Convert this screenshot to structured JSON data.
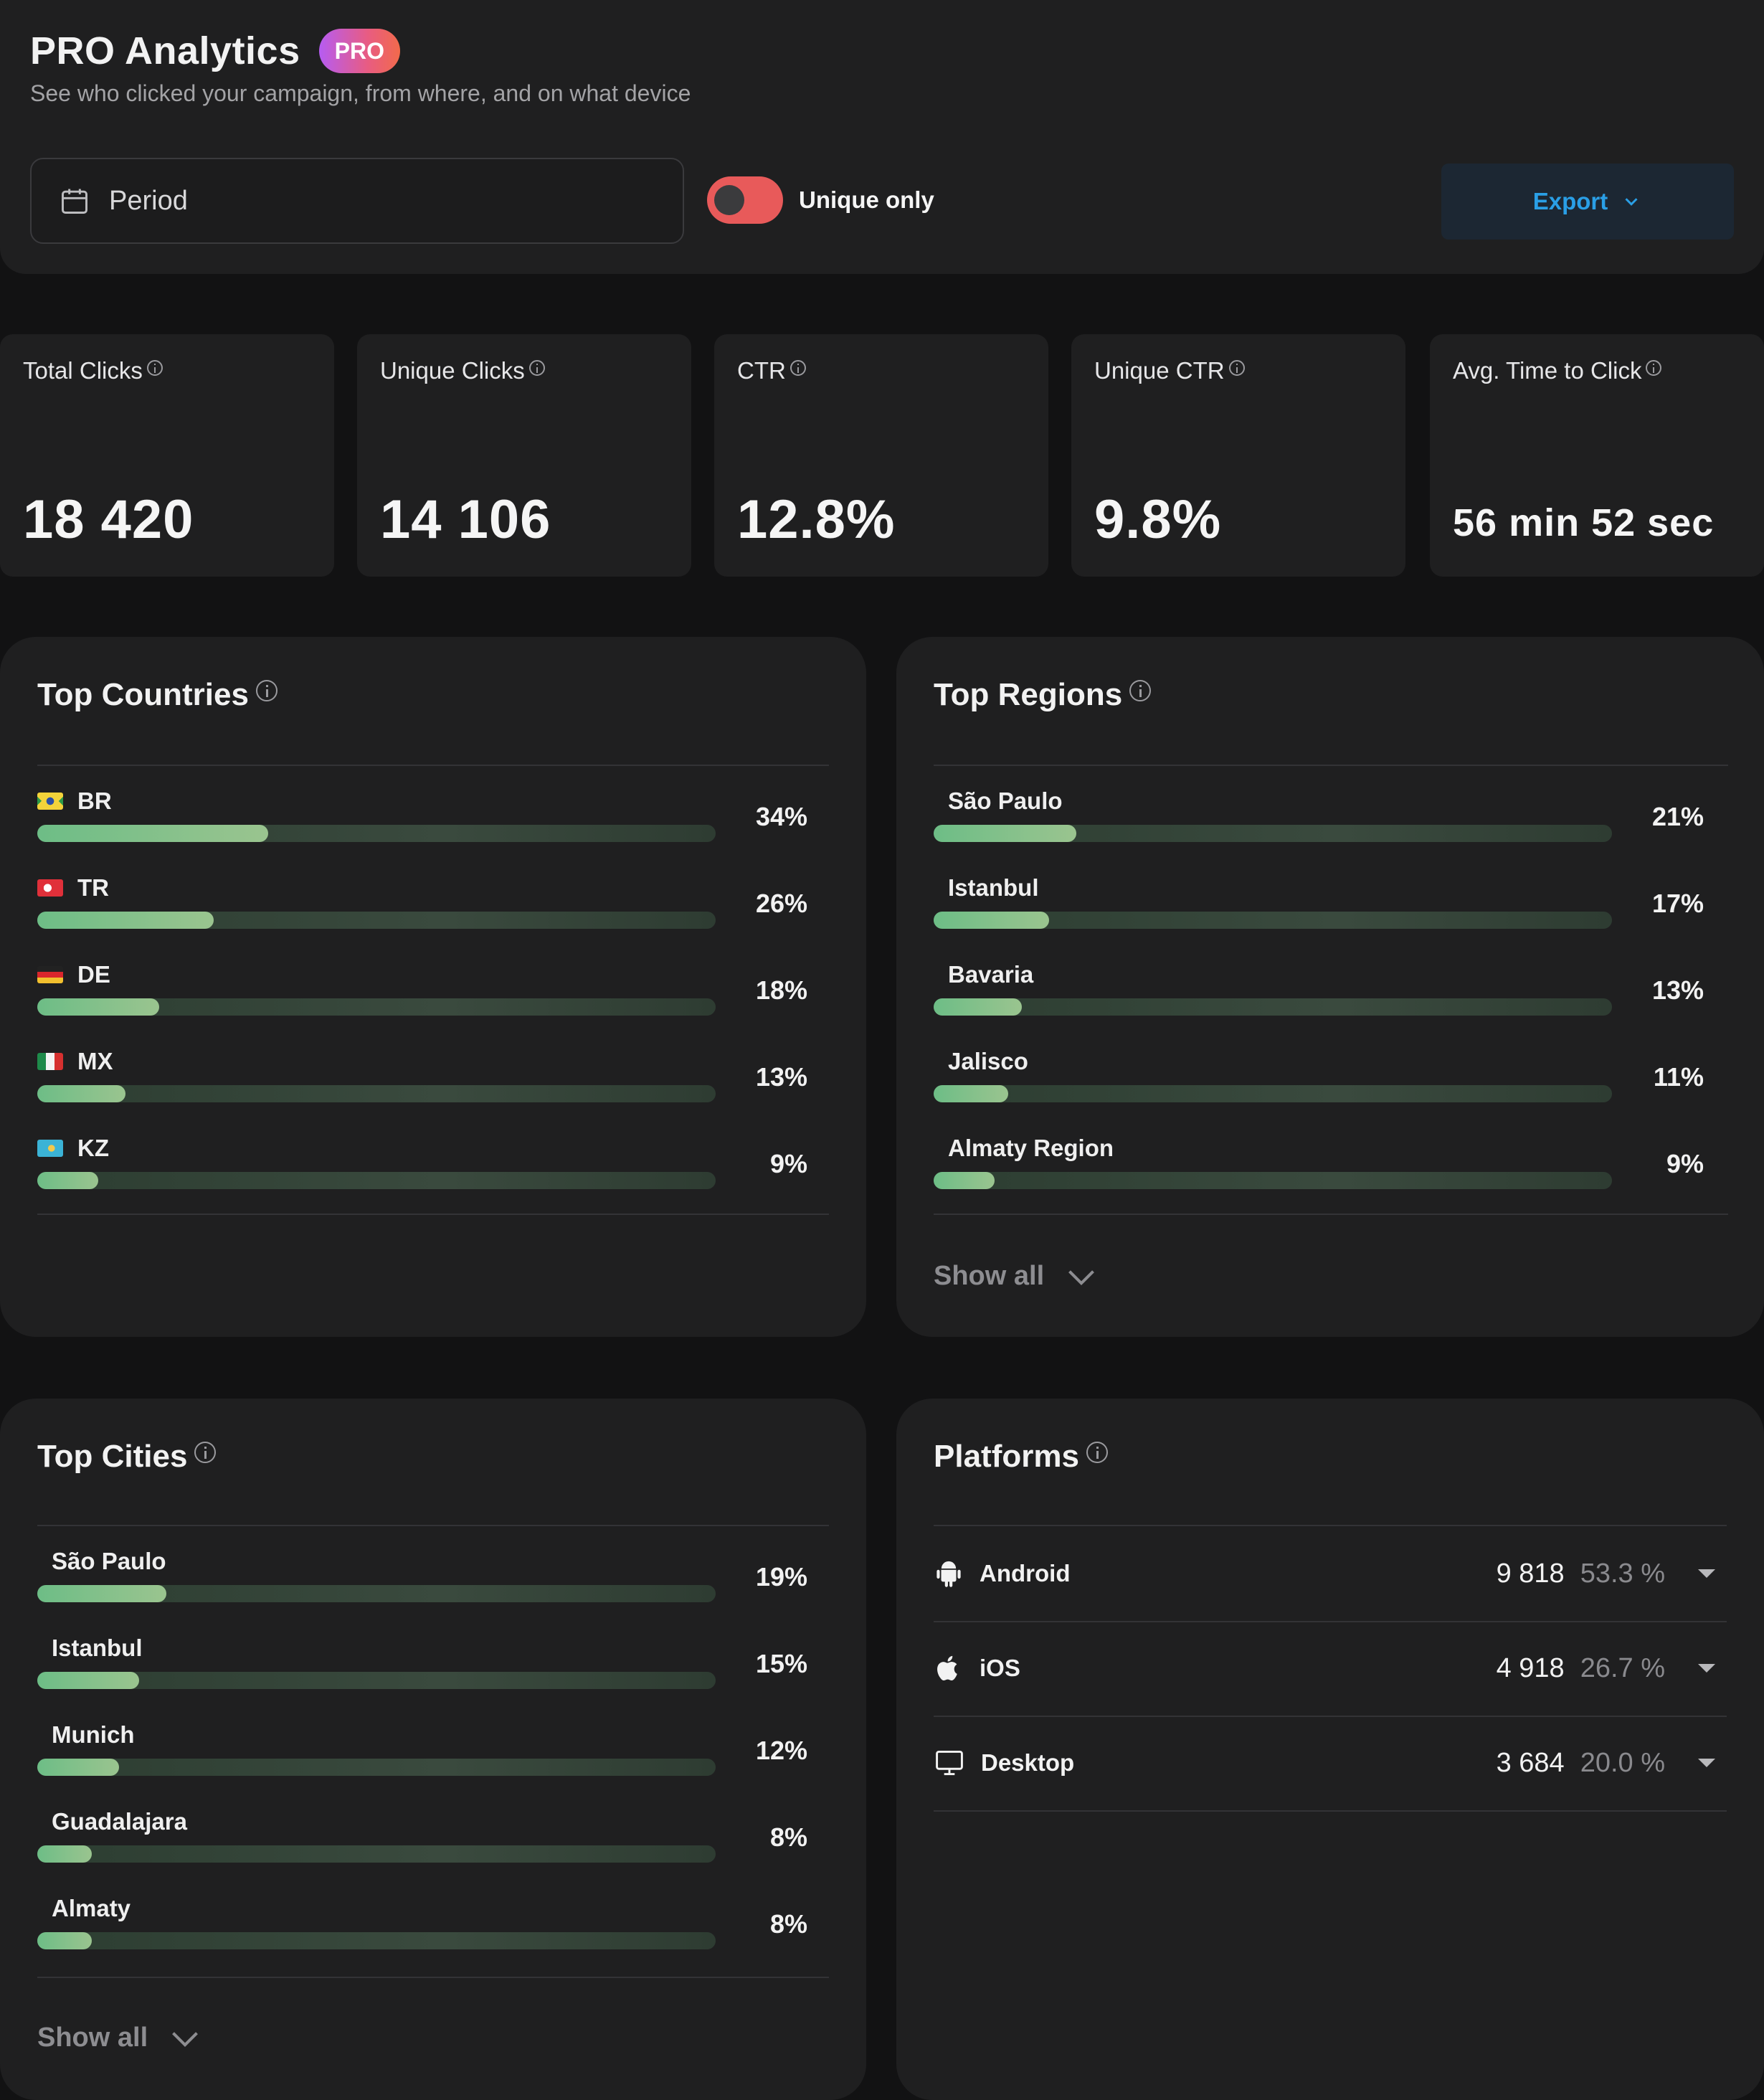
{
  "header": {
    "title": "PRO Analytics",
    "badge": "PRO",
    "subtitle": "See who clicked your campaign, from where, and on what device",
    "period_placeholder": "Period",
    "toggle_label": "Unique only",
    "toggle_on": true,
    "export_label": "Export"
  },
  "kpis": [
    {
      "label": "Total Clicks",
      "value": "18 420"
    },
    {
      "label": "Unique Clicks",
      "value": "14 106"
    },
    {
      "label": "CTR",
      "value": "12.8%"
    },
    {
      "label": "Unique CTR",
      "value": "9.8%"
    },
    {
      "label": "Avg. Time to Click",
      "value": "56 min 52 sec"
    }
  ],
  "countries": {
    "title": "Top Countries",
    "items": [
      {
        "code": "BR",
        "pct": "34%",
        "value": 34
      },
      {
        "code": "TR",
        "pct": "26%",
        "value": 26
      },
      {
        "code": "DE",
        "pct": "18%",
        "value": 18
      },
      {
        "code": "MX",
        "pct": "13%",
        "value": 13
      },
      {
        "code": "KZ",
        "pct": "9%",
        "value": 9
      }
    ]
  },
  "regions": {
    "title": "Top Regions",
    "items": [
      {
        "name": "São Paulo",
        "pct": "21%",
        "value": 21
      },
      {
        "name": "Istanbul",
        "pct": "17%",
        "value": 17
      },
      {
        "name": "Bavaria",
        "pct": "13%",
        "value": 13
      },
      {
        "name": "Jalisco",
        "pct": "11%",
        "value": 11
      },
      {
        "name": "Almaty Region",
        "pct": "9%",
        "value": 9
      }
    ],
    "show_all": "Show all"
  },
  "cities": {
    "title": "Top Cities",
    "items": [
      {
        "name": "São Paulo",
        "pct": "19%",
        "value": 19
      },
      {
        "name": "Istanbul",
        "pct": "15%",
        "value": 15
      },
      {
        "name": "Munich",
        "pct": "12%",
        "value": 12
      },
      {
        "name": "Guadalajara",
        "pct": "8%",
        "value": 8
      },
      {
        "name": "Almaty",
        "pct": "8%",
        "value": 8
      }
    ],
    "show_all": "Show all"
  },
  "platforms": {
    "title": "Platforms",
    "items": [
      {
        "name": "Android",
        "count": "9 818",
        "pct": "53.3 %",
        "icon": "android-icon"
      },
      {
        "name": "iOS",
        "count": "4 918",
        "pct": "26.7 %",
        "icon": "apple-icon"
      },
      {
        "name": "Desktop",
        "count": "3 684",
        "pct": "20.0 %",
        "icon": "desktop-icon"
      }
    ]
  },
  "colors": {
    "accent": "#2a9fe6",
    "toggle": "#e85a5a",
    "bar_fill": "#7cc08b"
  }
}
